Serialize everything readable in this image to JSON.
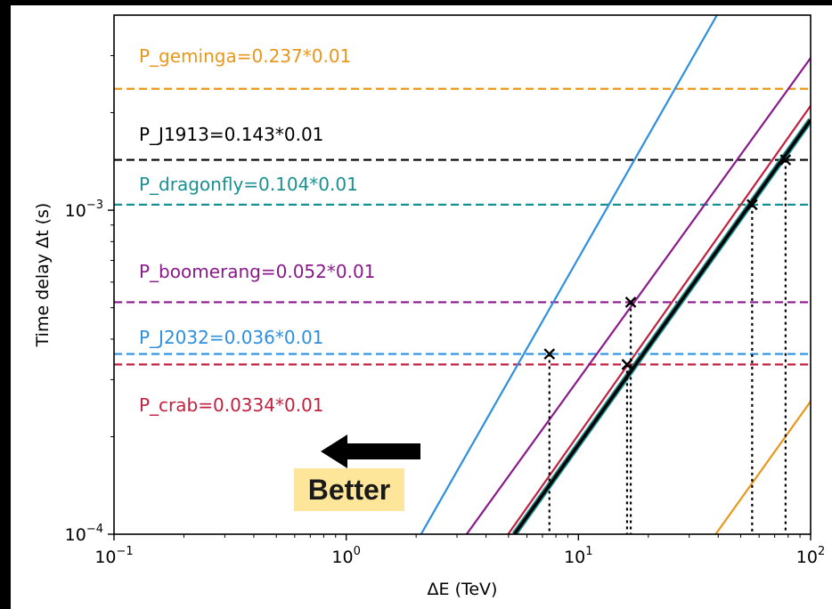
{
  "chart_data": {
    "type": "line",
    "xlabel": "ΔE (TeV)",
    "ylabel": "Time delay Δt (s)",
    "xscale": "log",
    "yscale": "log",
    "xlim": [
      0.1,
      100
    ],
    "ylim": [
      0.0001,
      0.004
    ],
    "x_ticks": [
      {
        "value": 0.1,
        "base": "10",
        "exp": "−1"
      },
      {
        "value": 1,
        "base": "10",
        "exp": "0"
      },
      {
        "value": 10,
        "base": "10",
        "exp": "1"
      },
      {
        "value": 100,
        "base": "10",
        "exp": "2"
      }
    ],
    "y_ticks": [
      {
        "value": 0.0001,
        "base": "10",
        "exp": "−4"
      },
      {
        "value": 0.001,
        "base": "10",
        "exp": "−3"
      }
    ],
    "grid": false,
    "thresholds": [
      {
        "label": "P_geminga=0.237*0.01",
        "y": 0.00237,
        "color": "#e8971c"
      },
      {
        "label": "P_J1913=0.143*0.01",
        "y": 0.00143,
        "color": "#000000"
      },
      {
        "label": "P_dragonfly=0.104*0.01",
        "y": 0.00104,
        "color": "#1a9090"
      },
      {
        "label": "P_boomerang=0.052*0.01",
        "y": 0.00052,
        "color": "#8a1a8a"
      },
      {
        "label": "P_J2032=0.036*0.01",
        "y": 0.00036,
        "color": "#2e8fdf"
      },
      {
        "label": "P_crab=0.0334*0.01",
        "y": 0.000334,
        "color": "#c0223f"
      }
    ],
    "curves": [
      {
        "color": "#2e8fdf",
        "points": [
          [
            2.1,
            0.0001
          ],
          [
            39.5,
            0.004
          ]
        ],
        "width": 2.2
      },
      {
        "color": "#8a1a8a",
        "points": [
          [
            3.3,
            0.0001
          ],
          [
            100,
            0.00295
          ]
        ],
        "width": 2.2
      },
      {
        "color": "#c0223f",
        "points": [
          [
            4.98,
            0.0001
          ],
          [
            100,
            0.0021
          ]
        ],
        "width": 2.2
      },
      {
        "color": "#1a9090",
        "points": [
          [
            5.3,
            0.0001
          ],
          [
            100,
            0.0019
          ]
        ],
        "width": 6.5
      },
      {
        "color": "#000000",
        "points": [
          [
            5.3,
            0.0001
          ],
          [
            100,
            0.0019
          ]
        ],
        "width": 3.5
      },
      {
        "color": "#e8971c",
        "points": [
          [
            39,
            0.0001
          ],
          [
            100,
            0.000257
          ]
        ],
        "width": 2.2
      }
    ],
    "intersections": [
      {
        "x": 7.5,
        "y": 0.00036
      },
      {
        "x": 16.8,
        "y": 0.00052
      },
      {
        "x": 16.2,
        "y": 0.000334
      },
      {
        "x": 56,
        "y": 0.00104
      },
      {
        "x": 78,
        "y": 0.00143
      }
    ]
  },
  "annotation": {
    "better_label": "Better",
    "arrow_direction": "left",
    "arrow_color": "#000000",
    "highlight_color": "#fde59a"
  }
}
